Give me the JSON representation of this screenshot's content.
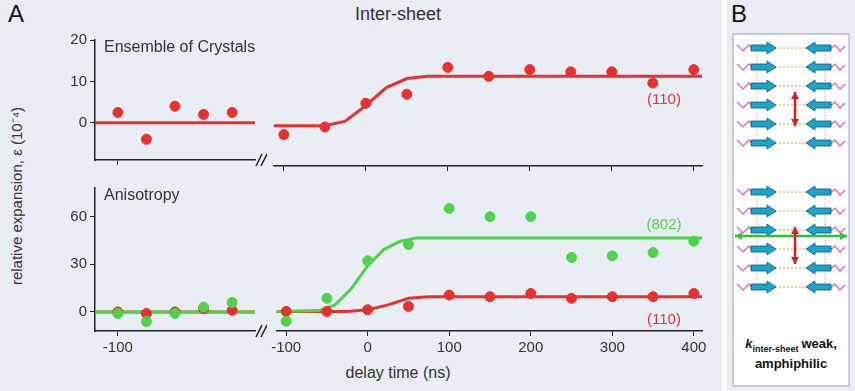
{
  "figure": {
    "letter": "A",
    "title": "Inter-sheet",
    "ylabel": "relative expansion, ε (10⁻⁴)",
    "xlabel": "delay time (ns)"
  },
  "chart_data": [
    {
      "type": "scatter",
      "title": "Ensemble of Crystals",
      "tick_labels": "y",
      "grid": false,
      "ylim": [
        -9,
        20
      ],
      "yticks": [
        0,
        10,
        20
      ],
      "x_segments": [
        {
          "xlim": [
            -104,
            -76
          ],
          "xticks": [
            -100
          ]
        },
        {
          "xlim": [
            -112,
            410
          ],
          "xticks": [
            -100,
            0,
            100,
            200,
            300,
            400
          ]
        }
      ],
      "series": [
        {
          "name": "(110)",
          "color": "#e8312e",
          "marker": "circle",
          "line_style": "solid",
          "segments": [
            {
              "x": [
                -100,
                -95,
                -90,
                -85,
                -80
              ],
              "values": [
                2.5,
                -4,
                4,
                2,
                2.5
              ],
              "fit_x": [
                -104,
                -76
              ],
              "fit_values": [
                0,
                0
              ]
            },
            {
              "x": [
                -100,
                -50,
                0,
                50,
                100,
                150,
                200,
                250,
                300,
                350,
                400
              ],
              "values": [
                -2,
                -0.3,
                5,
                7,
                13,
                11,
                12.5,
                12,
                12,
                9.5,
                12.5
              ],
              "fit_x": [
                -112,
                -50,
                -25,
                0,
                25,
                50,
                75,
                100,
                410
              ],
              "fit_values": [
                0,
                0,
                1,
                4.5,
                8.5,
                10.5,
                11,
                11,
                11
              ]
            }
          ]
        }
      ]
    },
    {
      "type": "scatter",
      "title": "Anisotropy",
      "grid": false,
      "ylim": [
        -12,
        78
      ],
      "yticks": [
        0,
        30,
        60
      ],
      "x_segments": [
        {
          "xlim": [
            -104,
            -76
          ],
          "xticks": [
            -100
          ]
        },
        {
          "xlim": [
            -112,
            410
          ],
          "xticks": [
            -100,
            0,
            100,
            200,
            300,
            400
          ]
        }
      ],
      "series": [
        {
          "name": "(802)",
          "color": "#4ed44a",
          "marker": "circle",
          "line_style": "solid",
          "segments": [
            {
              "x": [
                -100,
                -95,
                -90,
                -85,
                -80
              ],
              "values": [
                -1,
                -6,
                -1,
                3,
                6
              ],
              "fit_x": [
                -104,
                -76
              ],
              "fit_values": [
                0,
                0
              ]
            },
            {
              "x": [
                -100,
                -50,
                0,
                50,
                100,
                150,
                200,
                250,
                300,
                350,
                400
              ],
              "values": [
                -6,
                8,
                31,
                41,
                63,
                58,
                58,
                33,
                34,
                36,
                43
              ],
              "fit_x": [
                -112,
                -60,
                -40,
                -20,
                0,
                20,
                40,
                60,
                100,
                410
              ],
              "fit_values": [
                0,
                0.5,
                4,
                14,
                28,
                38,
                43,
                45,
                45,
                45
              ]
            }
          ]
        },
        {
          "name": "(110)",
          "color": "#e8312e",
          "marker": "circle",
          "line_style": "solid",
          "segments": [
            {
              "x": [
                -100,
                -95,
                -90,
                -85,
                -80
              ],
              "values": [
                0,
                -1,
                0,
                2,
                1
              ],
              "fit_x": [
                -104,
                -76
              ],
              "fit_values": [
                0,
                0
              ]
            },
            {
              "x": [
                -100,
                -50,
                0,
                50,
                100,
                150,
                200,
                250,
                300,
                350,
                400
              ],
              "values": [
                0,
                0,
                1,
                3,
                10,
                9,
                11,
                8,
                9,
                9,
                11
              ],
              "fit_x": [
                -112,
                -25,
                0,
                25,
                50,
                75,
                100,
                410
              ],
              "fit_values": [
                0,
                0,
                1,
                4,
                8,
                9,
                9,
                9
              ]
            }
          ]
        }
      ]
    }
  ],
  "panel_b": {
    "letter": "B",
    "caption": {
      "k": "k",
      "subscript": "inter-sheet",
      "rest": "weak,",
      "line2": "amphiphilic"
    }
  }
}
